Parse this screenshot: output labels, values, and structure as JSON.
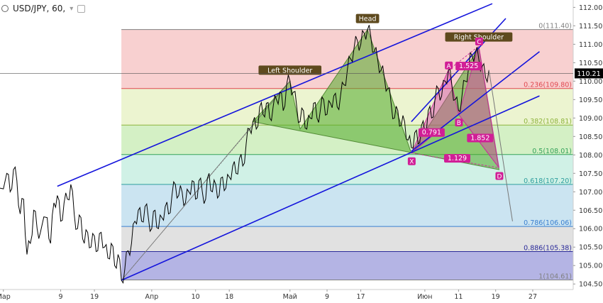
{
  "header": {
    "symbol": "USD/JPY, 60,",
    "chevron_icon": "chevron-down-icon",
    "settings_icon": "square-icon"
  },
  "chart_data": {
    "type": "line",
    "title": "USD/JPY, 60,",
    "y_axis": {
      "ylim": [
        104.35,
        112.2
      ],
      "ticks": [
        104.5,
        105.0,
        105.5,
        106.0,
        106.5,
        107.0,
        107.5,
        108.0,
        108.5,
        109.0,
        109.5,
        110.0,
        110.5,
        111.0,
        111.5,
        112.0
      ],
      "labels": [
        "104.50",
        "105.00",
        "105.50",
        "106.00",
        "106.50",
        "107.00",
        "107.50",
        "108.00",
        "108.50",
        "109.00",
        "109.50",
        "110.00",
        "110.50",
        "111.00",
        "111.50",
        "112.00"
      ]
    },
    "x_axis": {
      "ticks": [
        {
          "t": 0.5,
          "label": "Мар"
        },
        {
          "t": 9,
          "label": "9"
        },
        {
          "t": 14,
          "label": "19"
        },
        {
          "t": 22.5,
          "label": "Апр"
        },
        {
          "t": 29,
          "label": "10"
        },
        {
          "t": 34,
          "label": "18"
        },
        {
          "t": 43,
          "label": "Май"
        },
        {
          "t": 48.5,
          "label": "9"
        },
        {
          "t": 53.5,
          "label": "17"
        },
        {
          "t": 63,
          "label": "Июн"
        },
        {
          "t": 68,
          "label": "11"
        },
        {
          "t": 73.5,
          "label": "19"
        },
        {
          "t": 79,
          "label": "27"
        }
      ],
      "tlim": [
        0,
        85
      ]
    },
    "current_price": {
      "value": 110.21,
      "label": "110.21"
    },
    "price": [
      [
        0,
        107.1
      ],
      [
        1,
        107.5
      ],
      [
        1.5,
        107.0
      ],
      [
        2,
        107.6
      ],
      [
        2.5,
        107.3
      ],
      [
        3,
        106.4
      ],
      [
        3.5,
        106.8
      ],
      [
        4,
        105.3
      ],
      [
        4.5,
        105.6
      ],
      [
        5,
        106.5
      ],
      [
        5.5,
        106.0
      ],
      [
        6,
        105.9
      ],
      [
        7,
        106.3
      ],
      [
        7.5,
        105.6
      ],
      [
        8,
        106.7
      ],
      [
        8.5,
        106.9
      ],
      [
        9,
        106.2
      ],
      [
        9.5,
        106.7
      ],
      [
        10,
        106.8
      ],
      [
        10.5,
        107.2
      ],
      [
        11,
        106.4
      ],
      [
        11.5,
        106.0
      ],
      [
        12,
        106.3
      ],
      [
        12.5,
        105.6
      ],
      [
        13,
        105.9
      ],
      [
        13.5,
        105.5
      ],
      [
        14,
        105.8
      ],
      [
        14.5,
        105.4
      ],
      [
        15,
        105.9
      ],
      [
        15.5,
        105.5
      ],
      [
        16,
        105.2
      ],
      [
        16.5,
        105.6
      ],
      [
        17,
        105.0
      ],
      [
        17.5,
        105.3
      ],
      [
        18,
        104.6
      ],
      [
        18.5,
        104.9
      ],
      [
        19,
        105.4
      ],
      [
        19.5,
        105.6
      ],
      [
        20,
        106.2
      ],
      [
        20.5,
        106.5
      ],
      [
        21,
        106.2
      ],
      [
        21.5,
        106.6
      ],
      [
        22,
        106.3
      ],
      [
        22.5,
        106.0
      ],
      [
        23,
        106.5
      ],
      [
        23.5,
        106.0
      ],
      [
        24,
        106.3
      ],
      [
        24.5,
        106.6
      ],
      [
        25,
        106.4
      ],
      [
        25.5,
        106.9
      ],
      [
        26,
        107.2
      ],
      [
        26.5,
        106.9
      ],
      [
        27,
        107.0
      ],
      [
        27.5,
        106.7
      ],
      [
        28,
        107.0
      ],
      [
        28.5,
        107.3
      ],
      [
        29,
        106.8
      ],
      [
        29.5,
        107.3
      ],
      [
        30,
        107.0
      ],
      [
        30.5,
        106.8
      ],
      [
        31,
        107.5
      ],
      [
        31.5,
        107.0
      ],
      [
        32,
        107.2
      ],
      [
        32.5,
        106.9
      ],
      [
        33,
        107.4
      ],
      [
        33.5,
        107.1
      ],
      [
        34,
        107.4
      ],
      [
        34.5,
        107.7
      ],
      [
        35,
        107.5
      ],
      [
        35.5,
        107.9
      ],
      [
        36,
        107.7
      ],
      [
        36.5,
        108.3
      ],
      [
        37,
        108.7
      ],
      [
        37.5,
        108.9
      ],
      [
        38,
        108.7
      ],
      [
        38.5,
        109.3
      ],
      [
        39,
        109.1
      ],
      [
        39.5,
        109.4
      ],
      [
        40,
        109.0
      ],
      [
        40.5,
        109.3
      ],
      [
        41,
        109.5
      ],
      [
        41.5,
        109.7
      ],
      [
        42,
        109.2
      ],
      [
        42.5,
        109.9
      ],
      [
        43,
        110.0
      ],
      [
        43.5,
        109.7
      ],
      [
        44,
        109.3
      ],
      [
        44.5,
        108.9
      ],
      [
        45,
        109.2
      ],
      [
        45.5,
        108.7
      ],
      [
        46,
        109.0
      ],
      [
        46.5,
        109.4
      ],
      [
        47,
        109.0
      ],
      [
        47.5,
        109.2
      ],
      [
        48,
        109.5
      ],
      [
        48.5,
        109.1
      ],
      [
        49,
        109.4
      ],
      [
        49.5,
        109.6
      ],
      [
        50,
        109.3
      ],
      [
        50.5,
        109.6
      ],
      [
        51,
        109.9
      ],
      [
        51.5,
        110.3
      ],
      [
        52,
        110.6
      ],
      [
        52.5,
        110.9
      ],
      [
        53,
        111.1
      ],
      [
        53.5,
        111.0
      ],
      [
        54,
        111.3
      ],
      [
        54.5,
        111.4
      ],
      [
        55,
        111.2
      ],
      [
        55.5,
        110.8
      ],
      [
        56,
        110.6
      ],
      [
        56.5,
        110.3
      ],
      [
        57,
        110.1
      ],
      [
        57.5,
        109.8
      ],
      [
        58,
        109.4
      ],
      [
        58.5,
        109.0
      ],
      [
        59,
        109.2
      ],
      [
        59.5,
        108.8
      ],
      [
        60,
        108.9
      ],
      [
        60.5,
        108.4
      ],
      [
        61,
        108.2
      ],
      [
        61.5,
        108.6
      ],
      [
        62,
        108.3
      ],
      [
        62.5,
        108.8
      ],
      [
        63,
        108.6
      ],
      [
        63.5,
        109.2
      ],
      [
        64,
        109.0
      ],
      [
        64.5,
        109.5
      ],
      [
        65,
        109.8
      ],
      [
        65.5,
        109.6
      ],
      [
        66,
        110.0
      ],
      [
        66.5,
        110.3
      ],
      [
        67,
        109.9
      ],
      [
        67.5,
        109.5
      ],
      [
        68,
        109.2
      ],
      [
        68.5,
        109.6
      ],
      [
        69,
        110.0
      ],
      [
        69.5,
        110.4
      ],
      [
        70,
        110.7
      ],
      [
        70.5,
        110.8
      ],
      [
        71,
        110.6
      ],
      [
        71.5,
        110.4
      ],
      [
        72,
        110.1
      ],
      [
        72.5,
        110.3
      ]
    ],
    "projection": [
      [
        72.5,
        110.3
      ],
      [
        76,
        106.2
      ]
    ],
    "fib_levels": [
      {
        "ratio": "0",
        "value": 111.4,
        "label": "0(111.40)",
        "color": "#808080",
        "fill": "rgba(240,150,150,0.45)"
      },
      {
        "ratio": "0.236",
        "value": 109.8,
        "label": "0.236(109.80)",
        "color": "#e0484f",
        "fill": "rgba(220,235,170,0.55)"
      },
      {
        "ratio": "0.382",
        "value": 108.81,
        "label": "0.382(108.81)",
        "color": "#8db43c",
        "fill": "rgba(170,225,140,0.5)"
      },
      {
        "ratio": "0.5",
        "value": 108.01,
        "label": "0.5(108.01)",
        "color": "#34a25a",
        "fill": "rgba(170,230,210,0.55)"
      },
      {
        "ratio": "0.618",
        "value": 107.2,
        "label": "0.618(107.20)",
        "color": "#2e9e9e",
        "fill": "rgba(160,205,230,0.55)"
      },
      {
        "ratio": "0.786",
        "value": 106.06,
        "label": "0.786(106.06)",
        "color": "#3b7fd0",
        "fill": "rgba(200,200,200,0.55)"
      },
      {
        "ratio": "0.886",
        "value": 105.38,
        "label": "0.886(105.38)",
        "color": "#2a2a9a",
        "fill": "rgba(130,130,210,0.6)"
      },
      {
        "ratio": "1",
        "value": 104.61,
        "label": "1(104.61)",
        "color": "#808080",
        "fill": ""
      }
    ],
    "fib_start_t": 18,
    "channels": [
      {
        "name": "upper-channel-line",
        "p1": [
          8.5,
          107.15
        ],
        "p2": [
          73,
          112.1
        ]
      },
      {
        "name": "lower-channel-line",
        "p1": [
          18,
          104.6
        ],
        "p2": [
          80,
          109.6
        ]
      },
      {
        "name": "neckline-right",
        "p1": [
          61,
          108.1
        ],
        "p2": [
          80,
          110.8
        ]
      },
      {
        "name": "small-channel-upper",
        "p1": [
          61,
          108.9
        ],
        "p2": [
          75,
          111.7
        ]
      }
    ],
    "head_shoulders": {
      "points": [
        [
          37.5,
          108.9
        ],
        [
          43,
          110.0
        ],
        [
          44.5,
          108.7
        ],
        [
          54.5,
          111.4
        ],
        [
          61,
          108.05
        ],
        [
          71,
          110.9
        ],
        [
          74,
          107.6
        ]
      ],
      "labels": [
        {
          "text": "Left Shoulder",
          "t": 43,
          "v": 110.0
        },
        {
          "text": "Head",
          "t": 54.5,
          "v": 111.4
        },
        {
          "text": "Right Shoulder",
          "t": 71,
          "v": 110.9
        }
      ],
      "fill": "rgba(80,170,40,0.55)"
    },
    "harmonic": {
      "points": {
        "X": [
          61,
          108.05
        ],
        "A": [
          66.5,
          110.3
        ],
        "B": [
          68,
          109.1
        ],
        "C": [
          71,
          110.95
        ],
        "D": [
          74,
          107.65
        ]
      },
      "ratios": [
        {
          "text": "1.525",
          "t": 69.5,
          "v": 110.35
        },
        {
          "text": "0.791",
          "t": 64,
          "v": 108.55
        },
        {
          "text": "1.852",
          "t": 71.2,
          "v": 108.4
        },
        {
          "text": "1.129",
          "t": 67.8,
          "v": 107.85
        }
      ],
      "fill": "rgba(220,60,170,0.45)"
    },
    "trend_line_thin": [
      [
        18,
        104.6
      ],
      [
        43,
        110.0
      ]
    ],
    "dotted_line": [
      [
        18,
        104.6
      ],
      [
        38,
        108.9
      ]
    ]
  },
  "colors": {
    "price_line": "#000000",
    "channel": "#1414dc",
    "hs_label_bg": "#5e4a1e",
    "harmonic_point": "#d11e96",
    "current_price_bg": "#000000"
  }
}
